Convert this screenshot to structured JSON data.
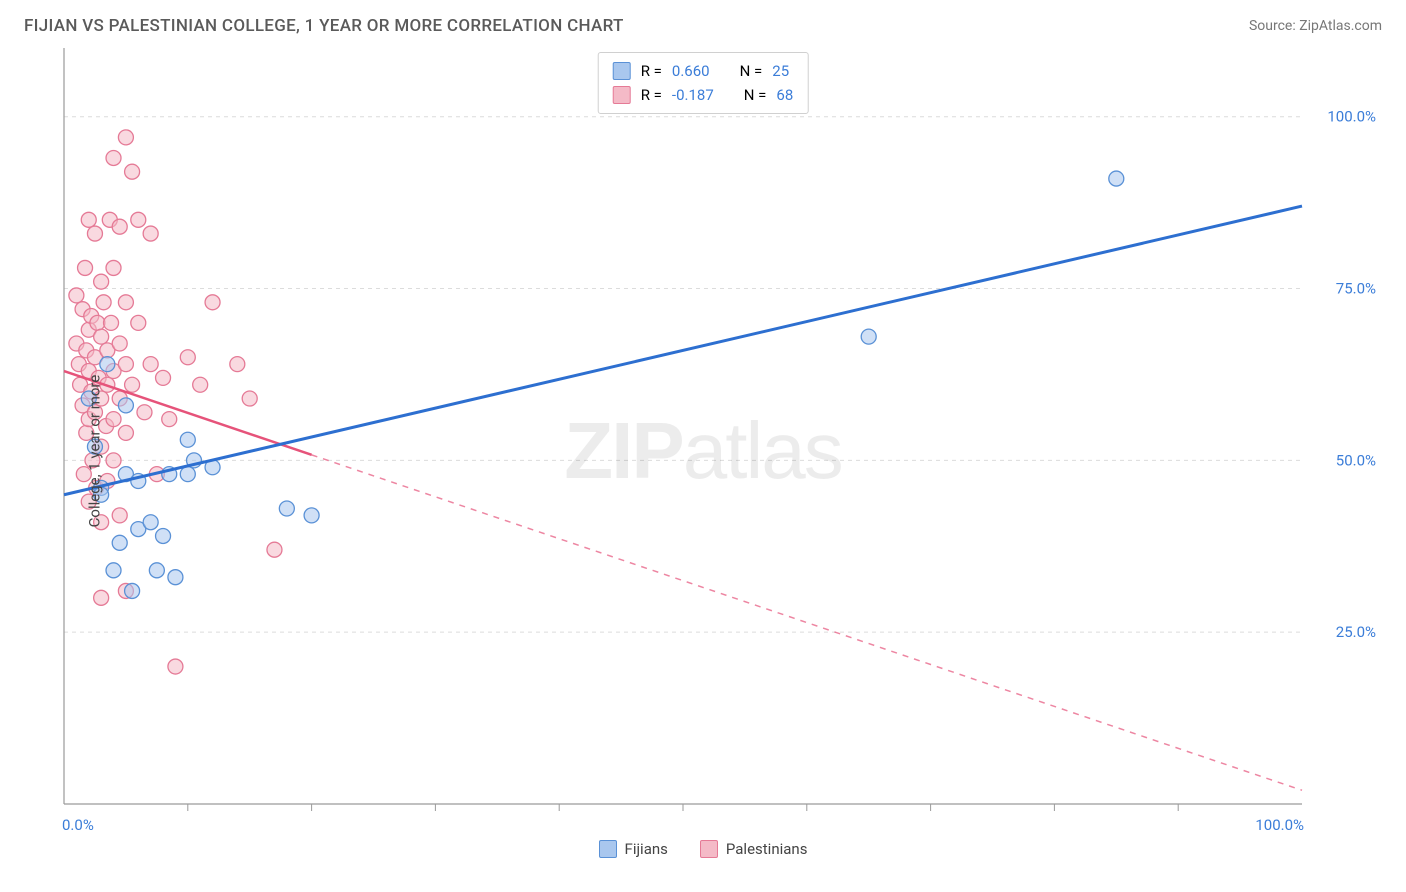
{
  "header": {
    "title": "FIJIAN VS PALESTINIAN COLLEGE, 1 YEAR OR MORE CORRELATION CHART",
    "source": "Source: ZipAtlas.com"
  },
  "chart": {
    "type": "scatter",
    "ylabel": "College, 1 year or more",
    "watermark": "ZIPatlas",
    "background_color": "#ffffff",
    "grid_color": "#dcdcdc",
    "axis_color": "#9a9a9a",
    "xlim": [
      0,
      100
    ],
    "ylim": [
      0,
      110
    ],
    "x_ticks": [
      0,
      100
    ],
    "x_tick_labels": [
      "0.0%",
      "100.0%"
    ],
    "x_minor_ticks": [
      10,
      20,
      30,
      40,
      50,
      60,
      70,
      80,
      90
    ],
    "y_ticks": [
      25,
      50,
      75,
      100
    ],
    "y_tick_labels": [
      "25.0%",
      "50.0%",
      "75.0%",
      "100.0%"
    ],
    "marker_radius": 7.5,
    "marker_opacity": 0.55,
    "series": [
      {
        "name": "Fijians",
        "color_fill": "#a9c7ee",
        "color_stroke": "#5a91d6",
        "line_color": "#2d6fd0",
        "line_width": 3,
        "line_dash": "none",
        "r_value": "0.660",
        "n_value": "25",
        "regression": {
          "x1": 0,
          "y1": 45,
          "x2": 100,
          "y2": 87
        },
        "points": [
          {
            "x": 2,
            "y": 59
          },
          {
            "x": 2.5,
            "y": 52
          },
          {
            "x": 3,
            "y": 46
          },
          {
            "x": 3,
            "y": 45
          },
          {
            "x": 3.5,
            "y": 64
          },
          {
            "x": 4,
            "y": 34
          },
          {
            "x": 4.5,
            "y": 38
          },
          {
            "x": 5,
            "y": 58
          },
          {
            "x": 5,
            "y": 48
          },
          {
            "x": 5.5,
            "y": 31
          },
          {
            "x": 6,
            "y": 40
          },
          {
            "x": 6,
            "y": 47
          },
          {
            "x": 7,
            "y": 41
          },
          {
            "x": 7.5,
            "y": 34
          },
          {
            "x": 8,
            "y": 39
          },
          {
            "x": 8.5,
            "y": 48
          },
          {
            "x": 9,
            "y": 33
          },
          {
            "x": 10,
            "y": 53
          },
          {
            "x": 10,
            "y": 48
          },
          {
            "x": 10.5,
            "y": 50
          },
          {
            "x": 12,
            "y": 49
          },
          {
            "x": 18,
            "y": 43
          },
          {
            "x": 20,
            "y": 42
          },
          {
            "x": 65,
            "y": 68
          },
          {
            "x": 85,
            "y": 91
          }
        ]
      },
      {
        "name": "Palestinians",
        "color_fill": "#f4bac7",
        "color_stroke": "#e57a96",
        "line_color": "#e6537a",
        "line_width": 2.5,
        "line_dash": "solid_then_dash",
        "r_value": "-0.187",
        "n_value": "68",
        "regression": {
          "x1": 0,
          "y1": 63,
          "x2": 100,
          "y2": 2
        },
        "regression_solid_until_x": 20,
        "points": [
          {
            "x": 1,
            "y": 74
          },
          {
            "x": 1,
            "y": 67
          },
          {
            "x": 1.2,
            "y": 64
          },
          {
            "x": 1.3,
            "y": 61
          },
          {
            "x": 1.5,
            "y": 58
          },
          {
            "x": 1.5,
            "y": 72
          },
          {
            "x": 1.6,
            "y": 48
          },
          {
            "x": 1.7,
            "y": 78
          },
          {
            "x": 1.8,
            "y": 66
          },
          {
            "x": 1.8,
            "y": 54
          },
          {
            "x": 2,
            "y": 85
          },
          {
            "x": 2,
            "y": 69
          },
          {
            "x": 2,
            "y": 63
          },
          {
            "x": 2,
            "y": 56
          },
          {
            "x": 2,
            "y": 44
          },
          {
            "x": 2.2,
            "y": 71
          },
          {
            "x": 2.2,
            "y": 60
          },
          {
            "x": 2.3,
            "y": 50
          },
          {
            "x": 2.5,
            "y": 83
          },
          {
            "x": 2.5,
            "y": 65
          },
          {
            "x": 2.5,
            "y": 57
          },
          {
            "x": 2.6,
            "y": 46
          },
          {
            "x": 2.7,
            "y": 70
          },
          {
            "x": 2.8,
            "y": 62
          },
          {
            "x": 3,
            "y": 76
          },
          {
            "x": 3,
            "y": 68
          },
          {
            "x": 3,
            "y": 59
          },
          {
            "x": 3,
            "y": 52
          },
          {
            "x": 3,
            "y": 41
          },
          {
            "x": 3,
            "y": 30
          },
          {
            "x": 3.2,
            "y": 73
          },
          {
            "x": 3.4,
            "y": 55
          },
          {
            "x": 3.5,
            "y": 66
          },
          {
            "x": 3.5,
            "y": 61
          },
          {
            "x": 3.5,
            "y": 47
          },
          {
            "x": 3.7,
            "y": 85
          },
          {
            "x": 3.8,
            "y": 70
          },
          {
            "x": 4,
            "y": 94
          },
          {
            "x": 4,
            "y": 78
          },
          {
            "x": 4,
            "y": 63
          },
          {
            "x": 4,
            "y": 56
          },
          {
            "x": 4,
            "y": 50
          },
          {
            "x": 4.5,
            "y": 84
          },
          {
            "x": 4.5,
            "y": 67
          },
          {
            "x": 4.5,
            "y": 59
          },
          {
            "x": 4.5,
            "y": 42
          },
          {
            "x": 5,
            "y": 97
          },
          {
            "x": 5,
            "y": 73
          },
          {
            "x": 5,
            "y": 64
          },
          {
            "x": 5,
            "y": 54
          },
          {
            "x": 5,
            "y": 31
          },
          {
            "x": 5.5,
            "y": 92
          },
          {
            "x": 5.5,
            "y": 61
          },
          {
            "x": 6,
            "y": 85
          },
          {
            "x": 6,
            "y": 70
          },
          {
            "x": 6.5,
            "y": 57
          },
          {
            "x": 7,
            "y": 83
          },
          {
            "x": 7,
            "y": 64
          },
          {
            "x": 7.5,
            "y": 48
          },
          {
            "x": 8,
            "y": 62
          },
          {
            "x": 8.5,
            "y": 56
          },
          {
            "x": 9,
            "y": 20
          },
          {
            "x": 10,
            "y": 65
          },
          {
            "x": 11,
            "y": 61
          },
          {
            "x": 12,
            "y": 73
          },
          {
            "x": 14,
            "y": 64
          },
          {
            "x": 15,
            "y": 59
          },
          {
            "x": 17,
            "y": 37
          }
        ]
      }
    ],
    "bottom_legend": [
      {
        "label": "Fijians",
        "fill": "#a9c7ee",
        "stroke": "#5a91d6"
      },
      {
        "label": "Palestinians",
        "fill": "#f4bac7",
        "stroke": "#e57a96"
      }
    ]
  }
}
